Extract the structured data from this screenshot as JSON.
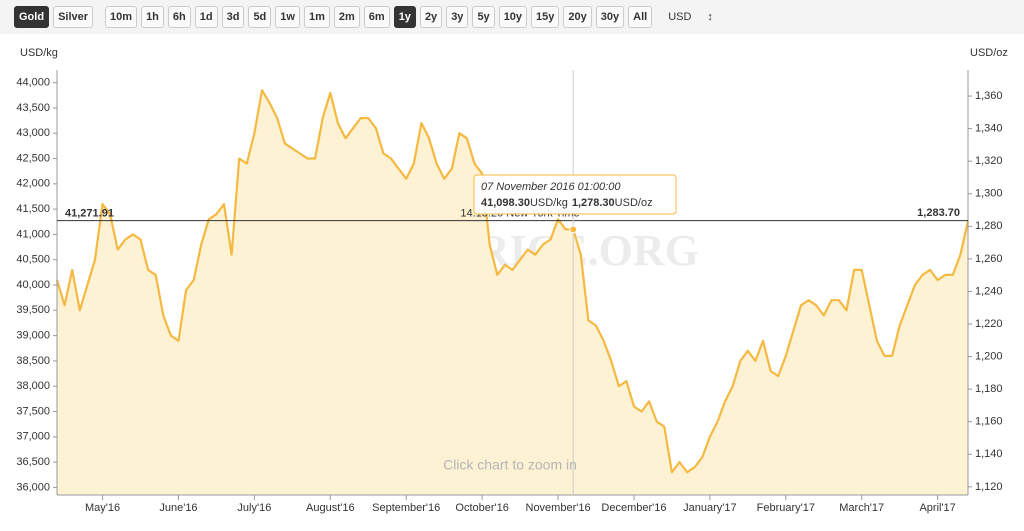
{
  "toolbar": {
    "metals": [
      "Gold",
      "Silver"
    ],
    "active_metal": "Gold",
    "ranges": [
      "10m",
      "1h",
      "6h",
      "1d",
      "3d",
      "5d",
      "1w",
      "1m",
      "2m",
      "6m",
      "1y",
      "2y",
      "3y",
      "5y",
      "10y",
      "15y",
      "20y",
      "30y",
      "All"
    ],
    "active_range": "1y",
    "currency": "USD"
  },
  "chart_data": {
    "type": "area",
    "y_label": "USD/kg",
    "y2_label": "USD/oz",
    "watermark": "GOLDPRICE.ORG",
    "hint": "Click chart to zoom in",
    "timestamp": "14:13:20 New York Time",
    "categories": [
      null,
      null,
      null,
      null,
      null,
      null,
      "May'16",
      null,
      null,
      null,
      null,
      null,
      null,
      null,
      null,
      null,
      "June'16",
      null,
      null,
      null,
      null,
      null,
      null,
      null,
      null,
      null,
      "July'16",
      null,
      null,
      null,
      null,
      null,
      null,
      null,
      null,
      null,
      "August'16",
      null,
      null,
      null,
      null,
      null,
      null,
      null,
      null,
      null,
      "September'16",
      null,
      null,
      null,
      null,
      null,
      null,
      null,
      null,
      null,
      "October'16",
      null,
      null,
      null,
      null,
      null,
      null,
      null,
      null,
      null,
      "November'16",
      null,
      null,
      null,
      null,
      null,
      null,
      null,
      null,
      null,
      "December'16",
      null,
      null,
      null,
      null,
      null,
      null,
      null,
      null,
      null,
      "January'17",
      null,
      null,
      null,
      null,
      null,
      null,
      null,
      null,
      null,
      "February'17",
      null,
      null,
      null,
      null,
      null,
      null,
      null,
      null,
      null,
      "March'17",
      null,
      null,
      null,
      null,
      null,
      null,
      null,
      null,
      null,
      "April'17",
      null,
      null,
      null,
      null
    ],
    "series": [
      {
        "name": "Gold",
        "color": "#f5b942",
        "fill": "#fdf2d4",
        "values": [
          40100,
          39600,
          40300,
          39500,
          40000,
          40500,
          41600,
          41400,
          40700,
          40900,
          41000,
          40900,
          40300,
          40200,
          39400,
          39000,
          38900,
          39900,
          40100,
          40800,
          41300,
          41400,
          41600,
          40600,
          42500,
          42400,
          43000,
          43850,
          43600,
          43300,
          42800,
          42700,
          42600,
          42500,
          42500,
          43300,
          43800,
          43200,
          42900,
          43100,
          43300,
          43300,
          43100,
          42600,
          42500,
          42300,
          42100,
          42400,
          43200,
          42900,
          42400,
          42100,
          42300,
          43000,
          42900,
          42400,
          42200,
          40800,
          40200,
          40400,
          40300,
          40500,
          40700,
          40600,
          40800,
          40900,
          41300,
          41100,
          41100,
          40600,
          39300,
          39200,
          38900,
          38500,
          38000,
          38100,
          37600,
          37500,
          37700,
          37300,
          37200,
          36300,
          36500,
          36300,
          36400,
          36600,
          37000,
          37300,
          37700,
          38000,
          38500,
          38700,
          38500,
          38900,
          38300,
          38200,
          38600,
          39100,
          39600,
          39700,
          39600,
          39400,
          39700,
          39700,
          39500,
          40300,
          40300,
          39600,
          38900,
          38600,
          38600,
          39200,
          39600,
          40000,
          40200,
          40300,
          40100,
          40200,
          40200,
          40600,
          41271.91
        ]
      }
    ],
    "ylim": [
      35850,
      44250
    ],
    "yticks": [
      {
        "value": 36000,
        "label": "36,000"
      },
      {
        "value": 36500,
        "label": "36,500"
      },
      {
        "value": 37000,
        "label": "37,000"
      },
      {
        "value": 37500,
        "label": "37,500"
      },
      {
        "value": 38000,
        "label": "38,000"
      },
      {
        "value": 38500,
        "label": "38,500"
      },
      {
        "value": 39000,
        "label": "39,000"
      },
      {
        "value": 39500,
        "label": "39,500"
      },
      {
        "value": 40000,
        "label": "40,000"
      },
      {
        "value": 40500,
        "label": "40,500"
      },
      {
        "value": 41000,
        "label": "41,000"
      },
      {
        "value": 41500,
        "label": "41,500"
      },
      {
        "value": 42000,
        "label": "42,000"
      },
      {
        "value": 42500,
        "label": "42,500"
      },
      {
        "value": 43000,
        "label": "43,000"
      },
      {
        "value": 43500,
        "label": "43,500"
      },
      {
        "value": 44000,
        "label": "44,000"
      }
    ],
    "y2lim": [
      1115,
      1376
    ],
    "y2ticks": [
      {
        "value": 1120,
        "label": "1,120"
      },
      {
        "value": 1140,
        "label": "1,140"
      },
      {
        "value": 1160,
        "label": "1,160"
      },
      {
        "value": 1180,
        "label": "1,180"
      },
      {
        "value": 1200,
        "label": "1,200"
      },
      {
        "value": 1220,
        "label": "1,220"
      },
      {
        "value": 1240,
        "label": "1,240"
      },
      {
        "value": 1260,
        "label": "1,260"
      },
      {
        "value": 1280,
        "label": "1,280"
      },
      {
        "value": 1300,
        "label": "1,300"
      },
      {
        "value": 1320,
        "label": "1,320"
      },
      {
        "value": 1340,
        "label": "1,340"
      },
      {
        "value": 1360,
        "label": "1,360"
      }
    ],
    "current": {
      "kg": {
        "value": 41271.91,
        "label": "41,271.91"
      },
      "oz": {
        "value": 1283.7,
        "label": "1,283.70"
      }
    },
    "tooltip": {
      "date": "07 November 2016 01:00:00",
      "index": 68,
      "kg": {
        "value": 41098.3,
        "label": "41,098.30"
      },
      "oz": {
        "value": 1278.3,
        "label": "1,278.30"
      }
    },
    "grid": false
  }
}
